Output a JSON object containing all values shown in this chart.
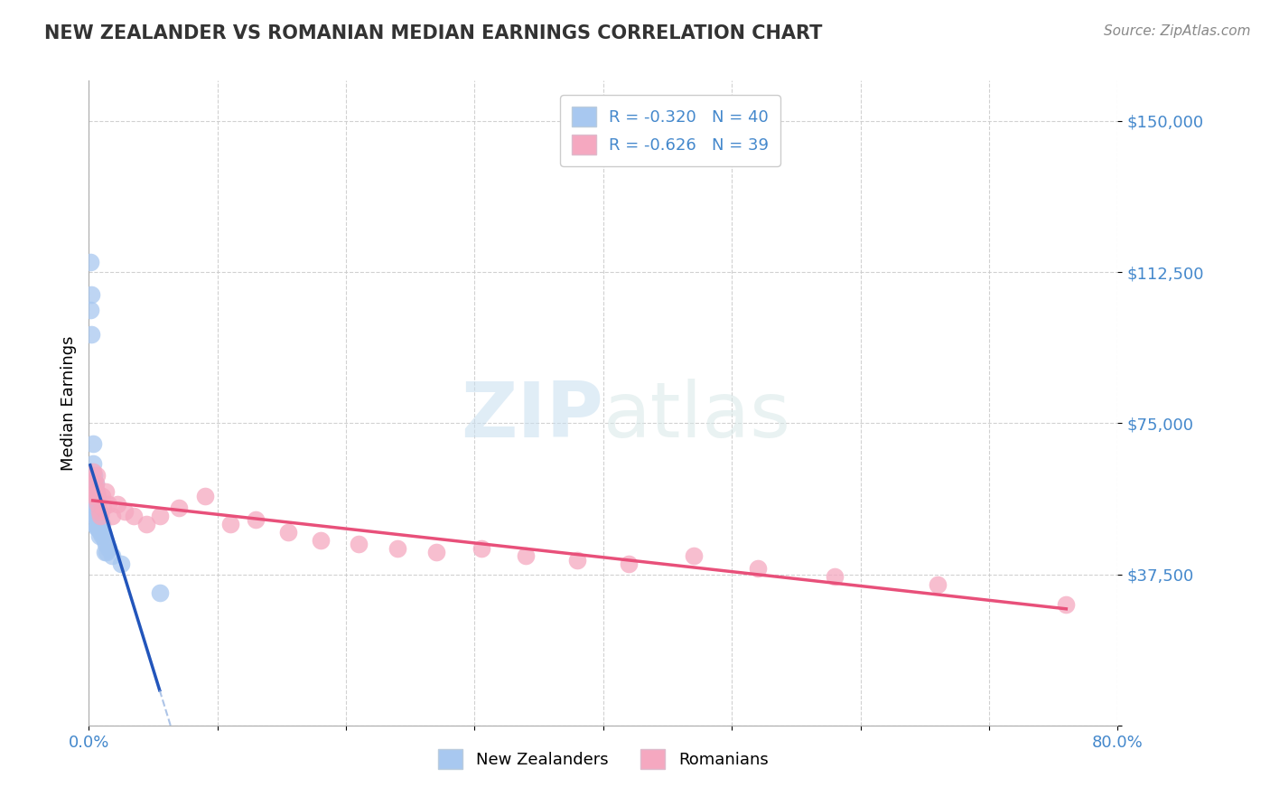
{
  "title": "NEW ZEALANDER VS ROMANIAN MEDIAN EARNINGS CORRELATION CHART",
  "source": "Source: ZipAtlas.com",
  "ylabel": "Median Earnings",
  "legend_nz_label": "New Zealanders",
  "legend_ro_label": "Romanians",
  "nz_r": "-0.320",
  "nz_n": "40",
  "ro_r": "-0.626",
  "ro_n": "39",
  "nz_color": "#a8c8f0",
  "ro_color": "#f5a8c0",
  "nz_line_color": "#2255bb",
  "ro_line_color": "#e8507a",
  "nz_line_dash_color": "#8aabdd",
  "watermark_zip": "ZIP",
  "watermark_atlas": "atlas",
  "xmin": 0.0,
  "xmax": 0.8,
  "ymin": 0,
  "ymax": 160000,
  "yticks": [
    0,
    37500,
    75000,
    112500,
    150000
  ],
  "ytick_labels": [
    "",
    "$37,500",
    "$75,000",
    "$112,500",
    "$150,000"
  ],
  "nz_x": [
    0.001,
    0.001,
    0.002,
    0.002,
    0.003,
    0.003,
    0.003,
    0.003,
    0.004,
    0.004,
    0.004,
    0.004,
    0.004,
    0.005,
    0.005,
    0.005,
    0.005,
    0.006,
    0.006,
    0.006,
    0.006,
    0.007,
    0.007,
    0.007,
    0.008,
    0.008,
    0.008,
    0.009,
    0.009,
    0.01,
    0.01,
    0.011,
    0.012,
    0.012,
    0.013,
    0.014,
    0.015,
    0.018,
    0.025,
    0.055
  ],
  "nz_y": [
    115000,
    103000,
    107000,
    97000,
    70000,
    65000,
    60000,
    55000,
    62000,
    57000,
    55000,
    52000,
    50000,
    60000,
    58000,
    55000,
    52000,
    57000,
    55000,
    52000,
    49000,
    55000,
    52000,
    49000,
    53000,
    50000,
    47000,
    52000,
    48000,
    50000,
    47000,
    48000,
    46000,
    43000,
    45000,
    43000,
    44000,
    42000,
    40000,
    33000
  ],
  "ro_x": [
    0.003,
    0.004,
    0.004,
    0.005,
    0.005,
    0.006,
    0.006,
    0.007,
    0.007,
    0.008,
    0.009,
    0.01,
    0.011,
    0.013,
    0.015,
    0.018,
    0.022,
    0.028,
    0.035,
    0.045,
    0.055,
    0.07,
    0.09,
    0.11,
    0.13,
    0.155,
    0.18,
    0.21,
    0.24,
    0.27,
    0.305,
    0.34,
    0.38,
    0.42,
    0.47,
    0.52,
    0.58,
    0.66,
    0.76
  ],
  "ro_y": [
    63000,
    60000,
    57000,
    60000,
    57000,
    62000,
    58000,
    57000,
    55000,
    53000,
    52000,
    57000,
    54000,
    58000,
    55000,
    52000,
    55000,
    53000,
    52000,
    50000,
    52000,
    54000,
    57000,
    50000,
    51000,
    48000,
    46000,
    45000,
    44000,
    43000,
    44000,
    42000,
    41000,
    40000,
    42000,
    39000,
    37000,
    35000,
    30000
  ]
}
